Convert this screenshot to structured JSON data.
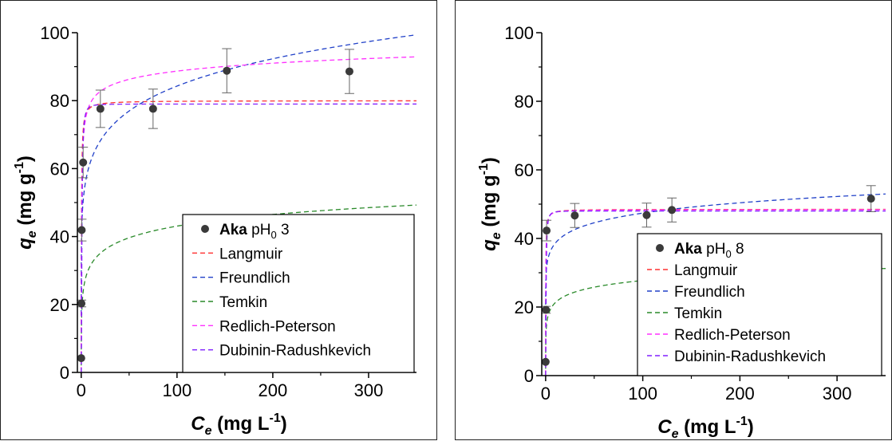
{
  "chart_data": [
    {
      "type": "scatter",
      "ylabel": "q_e (mg g^-1)",
      "xlabel": "C_e (mg L^-1)",
      "xlim": [
        -4,
        350
      ],
      "ylim": [
        0,
        100
      ],
      "xticks": [
        0,
        100,
        200,
        300
      ],
      "yticks": [
        0,
        20,
        40,
        60,
        80,
        100
      ],
      "grid": false,
      "legend": {
        "placement": "bottom-right",
        "sample_bold": "Aka",
        "sample_rest": "pH",
        "sample_sub": "0",
        "sample_after": " 3"
      },
      "data": {
        "name": "Aka pH0 3",
        "color": "#3a3a3a",
        "x": [
          0.0,
          0.2,
          0.5,
          2,
          20,
          75,
          152,
          280
        ],
        "y": [
          4.2,
          20.3,
          41.9,
          61.8,
          77.6,
          77.6,
          88.8,
          88.6
        ],
        "err": [
          0,
          1.0,
          3.2,
          4.5,
          5.5,
          5.8,
          6.5,
          6.5
        ]
      },
      "models": [
        {
          "name": "Langmuir",
          "color": "#ff3030",
          "kind": "langmuir",
          "qmax": 80.0,
          "K": 4.0
        },
        {
          "name": "Freundlich",
          "color": "#2040c8",
          "kind": "freundlich",
          "Kf": 46.0,
          "n": 0.1315
        },
        {
          "name": "Temkin",
          "color": "#2a8a2a",
          "kind": "temkin",
          "A": 60.0,
          "B": 4.95
        },
        {
          "name": "Redlich-Peterson",
          "color": "#ff30ff",
          "kind": "rp",
          "KR": 250.0,
          "aR": 3.3,
          "beta": 0.965
        },
        {
          "name": "Dubinin-Radushkevich",
          "color": "#8020ff",
          "kind": "dr",
          "qm": 79.0,
          "E": 1.8
        }
      ]
    },
    {
      "type": "scatter",
      "ylabel": "q_e (mg g^-1)",
      "xlabel": "C_e (mg L^-1)",
      "xlim": [
        -4,
        350
      ],
      "ylim": [
        0,
        100
      ],
      "xticks": [
        0,
        100,
        200,
        300
      ],
      "yticks": [
        0,
        20,
        40,
        60,
        80,
        100
      ],
      "grid": false,
      "legend": {
        "placement": "bottom-right",
        "sample_bold": "Aka",
        "sample_rest": "pH",
        "sample_sub": "0",
        "sample_after": " 8"
      },
      "data": {
        "name": "Aka pH0 8",
        "color": "#3a3a3a",
        "x": [
          0.0,
          0.3,
          1,
          30,
          104,
          130,
          335
        ],
        "y": [
          4.0,
          19.2,
          42.3,
          46.7,
          46.8,
          48.3,
          51.6
        ],
        "err": [
          0,
          1.0,
          3.0,
          3.5,
          3.5,
          3.5,
          3.8
        ]
      },
      "models": [
        {
          "name": "Langmuir",
          "color": "#ff3030",
          "kind": "langmuir",
          "qmax": 48.5,
          "K": 6.0
        },
        {
          "name": "Freundlich",
          "color": "#2040c8",
          "kind": "freundlich",
          "Kf": 31.5,
          "n": 0.0887
        },
        {
          "name": "Temkin",
          "color": "#2a8a2a",
          "kind": "temkin",
          "A": 200.0,
          "B": 2.8
        },
        {
          "name": "Redlich-Peterson",
          "color": "#ff30ff",
          "kind": "rp",
          "KR": 300.0,
          "aR": 6.2,
          "beta": 1.0
        },
        {
          "name": "Dubinin-Radushkevich",
          "color": "#8020ff",
          "kind": "dr",
          "qm": 48.0,
          "E": 2.2
        }
      ]
    }
  ]
}
